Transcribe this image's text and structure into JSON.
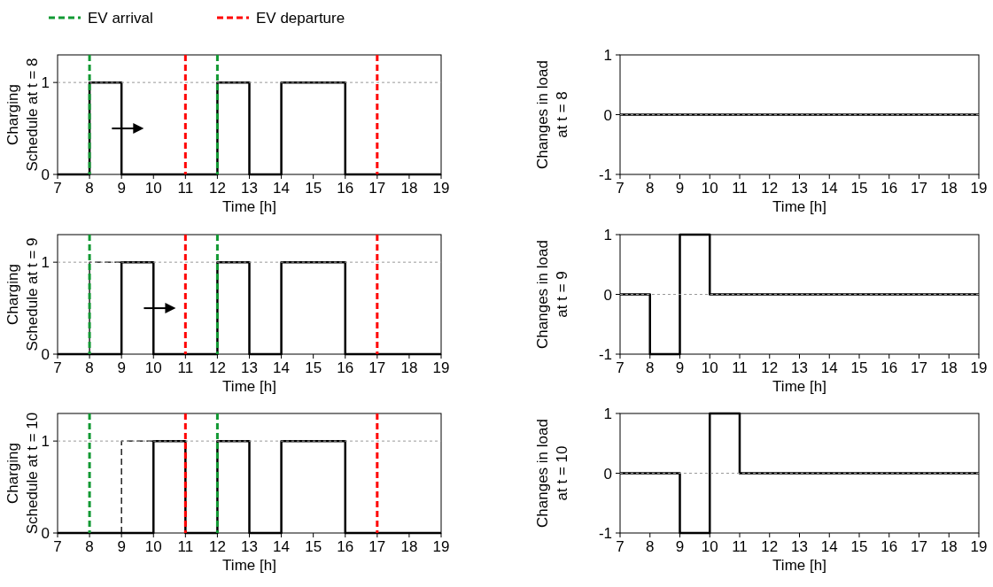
{
  "chart_data": [
    {
      "type": "step",
      "ylabel": "Charging\nSchedule at t = 8",
      "xlabel": "Time [h]",
      "x": [
        7,
        8,
        9,
        10,
        11,
        12,
        13,
        14,
        15,
        16,
        17,
        18,
        19
      ],
      "xlim": [
        7,
        19
      ],
      "xticks": [
        7,
        8,
        9,
        10,
        11,
        12,
        13,
        14,
        15,
        16,
        17,
        18,
        19
      ],
      "ylim": [
        0,
        1.3
      ],
      "yticks": [
        0,
        1
      ],
      "legend": "top",
      "series": [
        {
          "type": "step",
          "color": "#000000",
          "values": [
            0,
            1,
            0,
            0,
            0,
            1,
            0,
            1,
            1,
            0,
            0,
            0,
            0
          ]
        }
      ],
      "ref_lines": [
        {
          "axis": "y",
          "value": 1,
          "color": "#999999",
          "line_style": "dashed"
        },
        {
          "axis": "x",
          "value": 8,
          "label": "EV arrival",
          "color": "#119933",
          "line_style": "dashed"
        },
        {
          "axis": "x",
          "value": 12,
          "color": "#119933",
          "line_style": "dashed"
        },
        {
          "axis": "x",
          "value": 11,
          "label": "EV departure",
          "color": "#ff0000",
          "line_style": "dashed"
        },
        {
          "axis": "x",
          "value": 17,
          "color": "#ff0000",
          "line_style": "dashed"
        }
      ]
    },
    {
      "type": "step",
      "ylabel": "Changes in load\nat t = 8",
      "xlabel": "Time [h]",
      "x": [
        7,
        8,
        9,
        10,
        11,
        12,
        13,
        14,
        15,
        16,
        17,
        18,
        19
      ],
      "xlim": [
        7,
        19
      ],
      "xticks": [
        7,
        8,
        9,
        10,
        11,
        12,
        13,
        14,
        15,
        16,
        17,
        18,
        19
      ],
      "ylim": [
        -1,
        1
      ],
      "yticks": [
        -1,
        0,
        1
      ],
      "series": [
        {
          "type": "step",
          "color": "#000000",
          "values": [
            0,
            0,
            0,
            0,
            0,
            0,
            0,
            0,
            0,
            0,
            0,
            0,
            0
          ]
        }
      ],
      "ref_lines": [
        {
          "axis": "y",
          "value": 0,
          "color": "#999999",
          "line_style": "dashed"
        }
      ]
    },
    {
      "type": "step",
      "ylabel": "Charging\nSchedule at t = 9",
      "xlabel": "Time [h]",
      "x": [
        7,
        8,
        9,
        10,
        11,
        12,
        13,
        14,
        15,
        16,
        17,
        18,
        19
      ],
      "xlim": [
        7,
        19
      ],
      "xticks": [
        7,
        8,
        9,
        10,
        11,
        12,
        13,
        14,
        15,
        16,
        17,
        18,
        19
      ],
      "ylim": [
        0,
        1.3
      ],
      "yticks": [
        0,
        1
      ],
      "series": [
        {
          "type": "step",
          "color": "#000000",
          "values": [
            0,
            0,
            1,
            0,
            0,
            1,
            0,
            1,
            1,
            0,
            0,
            0,
            0
          ]
        },
        {
          "type": "line",
          "color": "#000000",
          "line_style": "dashed",
          "x": [
            8,
            8,
            9
          ],
          "values": [
            0,
            1,
            1
          ]
        }
      ],
      "ref_lines": [
        {
          "axis": "y",
          "value": 1,
          "color": "#999999",
          "line_style": "dashed"
        },
        {
          "axis": "x",
          "value": 8,
          "color": "#119933",
          "line_style": "dashed"
        },
        {
          "axis": "x",
          "value": 12,
          "color": "#119933",
          "line_style": "dashed"
        },
        {
          "axis": "x",
          "value": 11,
          "color": "#ff0000",
          "line_style": "dashed"
        },
        {
          "axis": "x",
          "value": 17,
          "color": "#ff0000",
          "line_style": "dashed"
        }
      ]
    },
    {
      "type": "step",
      "ylabel": "Changes in load\nat t = 9",
      "xlabel": "Time [h]",
      "x": [
        7,
        8,
        9,
        10,
        11,
        12,
        13,
        14,
        15,
        16,
        17,
        18,
        19
      ],
      "xlim": [
        7,
        19
      ],
      "xticks": [
        7,
        8,
        9,
        10,
        11,
        12,
        13,
        14,
        15,
        16,
        17,
        18,
        19
      ],
      "ylim": [
        -1,
        1
      ],
      "yticks": [
        -1,
        0,
        1
      ],
      "series": [
        {
          "type": "step",
          "color": "#000000",
          "values": [
            0,
            -1,
            1,
            0,
            0,
            0,
            0,
            0,
            0,
            0,
            0,
            0,
            0
          ]
        }
      ],
      "ref_lines": [
        {
          "axis": "y",
          "value": 0,
          "color": "#999999",
          "line_style": "dashed"
        }
      ]
    },
    {
      "type": "step",
      "ylabel": "Charging\nSchedule at t = 10",
      "xlabel": "Time [h]",
      "x": [
        7,
        8,
        9,
        10,
        11,
        12,
        13,
        14,
        15,
        16,
        17,
        18,
        19
      ],
      "xlim": [
        7,
        19
      ],
      "xticks": [
        7,
        8,
        9,
        10,
        11,
        12,
        13,
        14,
        15,
        16,
        17,
        18,
        19
      ],
      "ylim": [
        0,
        1.3
      ],
      "yticks": [
        0,
        1
      ],
      "series": [
        {
          "type": "step",
          "color": "#000000",
          "values": [
            0,
            0,
            0,
            1,
            0,
            1,
            0,
            1,
            1,
            0,
            0,
            0,
            0
          ]
        },
        {
          "type": "line",
          "color": "#000000",
          "line_style": "dashed",
          "x": [
            9,
            9,
            10
          ],
          "values": [
            0,
            1,
            1
          ]
        }
      ],
      "ref_lines": [
        {
          "axis": "y",
          "value": 1,
          "color": "#999999",
          "line_style": "dashed"
        },
        {
          "axis": "x",
          "value": 8,
          "color": "#119933",
          "line_style": "dashed"
        },
        {
          "axis": "x",
          "value": 12,
          "color": "#119933",
          "line_style": "dashed"
        },
        {
          "axis": "x",
          "value": 11,
          "color": "#ff0000",
          "line_style": "dashed"
        },
        {
          "axis": "x",
          "value": 17,
          "color": "#ff0000",
          "line_style": "dashed"
        }
      ]
    },
    {
      "type": "step",
      "ylabel": "Changes in load\nat t = 10",
      "xlabel": "Time [h]",
      "x": [
        7,
        8,
        9,
        10,
        11,
        12,
        13,
        14,
        15,
        16,
        17,
        18,
        19
      ],
      "xlim": [
        7,
        19
      ],
      "xticks": [
        7,
        8,
        9,
        10,
        11,
        12,
        13,
        14,
        15,
        16,
        17,
        18,
        19
      ],
      "ylim": [
        -1,
        1
      ],
      "yticks": [
        -1,
        0,
        1
      ],
      "series": [
        {
          "type": "step",
          "color": "#000000",
          "values": [
            0,
            0,
            -1,
            1,
            0,
            0,
            0,
            0,
            0,
            0,
            0,
            0,
            0
          ]
        }
      ],
      "ref_lines": [
        {
          "axis": "y",
          "value": 0,
          "color": "#999999",
          "line_style": "dashed"
        }
      ]
    }
  ]
}
